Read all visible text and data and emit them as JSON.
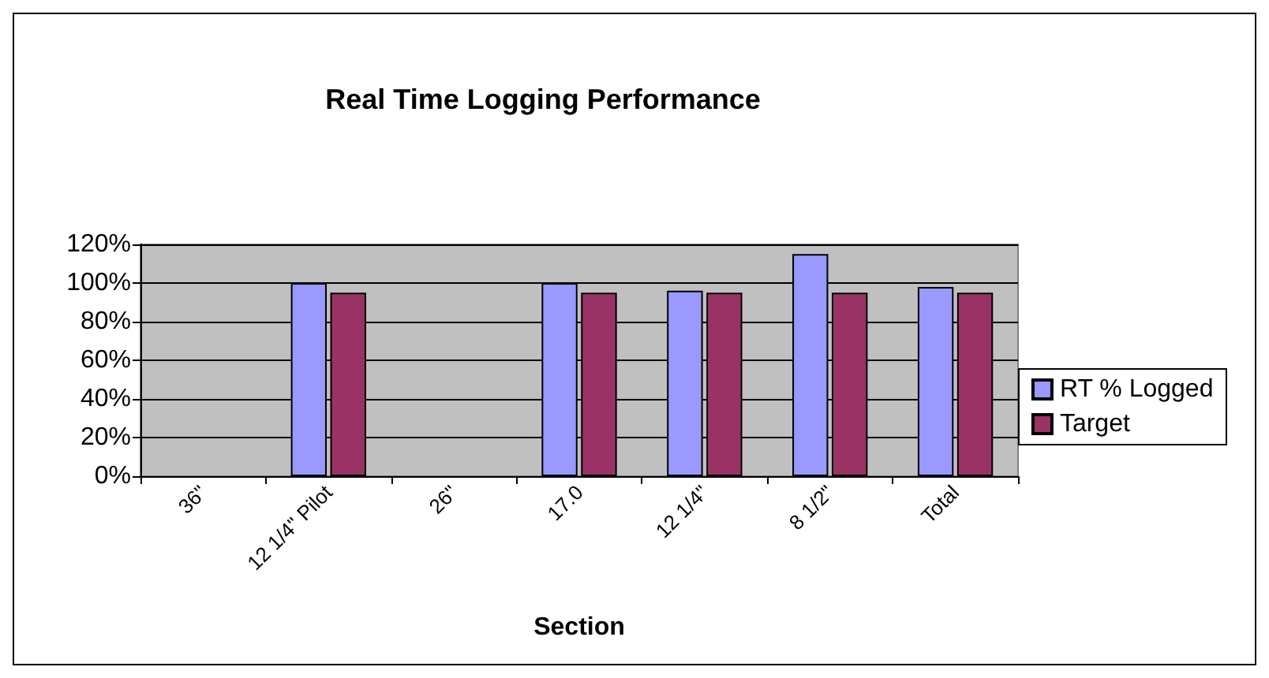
{
  "chart_data": {
    "type": "bar",
    "title": "Real Time Logging Performance",
    "xlabel": "Section",
    "categories": [
      "36\"",
      "12 1/4\" Pilot",
      "26\"",
      "17.0",
      "12 1/4\"",
      "8 1/2\"",
      "Total"
    ],
    "series": [
      {
        "name": "RT % Logged",
        "color": "#9999ff",
        "values": [
          null,
          100,
          null,
          100,
          96,
          115,
          98
        ]
      },
      {
        "name": "Target",
        "color": "#993366",
        "values": [
          null,
          95,
          null,
          95,
          95,
          95,
          95
        ]
      }
    ],
    "ylim": [
      0,
      120
    ],
    "yticks": [
      {
        "value": 0,
        "label": "0%"
      },
      {
        "value": 20,
        "label": "20%"
      },
      {
        "value": 40,
        "label": "40%"
      },
      {
        "value": 60,
        "label": "60%"
      },
      {
        "value": 80,
        "label": "80%"
      },
      {
        "value": 100,
        "label": "100%"
      },
      {
        "value": 120,
        "label": "120%"
      }
    ],
    "grid": "y",
    "legend": "right"
  }
}
